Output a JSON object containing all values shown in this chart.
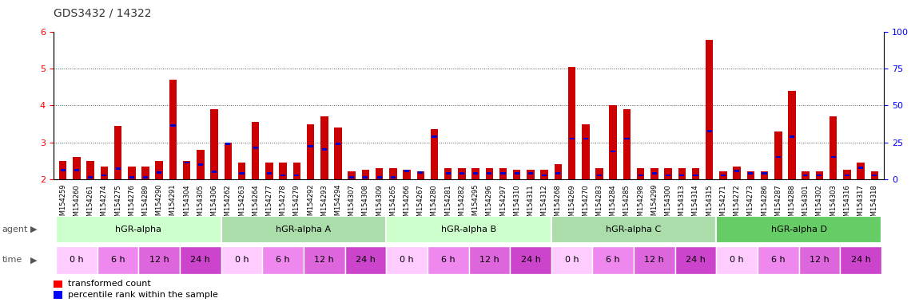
{
  "title": "GDS3432 / 14322",
  "samples": [
    "GSM154259",
    "GSM154260",
    "GSM154261",
    "GSM154274",
    "GSM154275",
    "GSM154276",
    "GSM154289",
    "GSM154290",
    "GSM154291",
    "GSM154304",
    "GSM154305",
    "GSM154306",
    "GSM154262",
    "GSM154263",
    "GSM154264",
    "GSM154277",
    "GSM154278",
    "GSM154279",
    "GSM154292",
    "GSM154293",
    "GSM154294",
    "GSM154307",
    "GSM154308",
    "GSM154309",
    "GSM154265",
    "GSM154266",
    "GSM154267",
    "GSM154280",
    "GSM154281",
    "GSM154282",
    "GSM154295",
    "GSM154296",
    "GSM154297",
    "GSM154310",
    "GSM154311",
    "GSM154312",
    "GSM154268",
    "GSM154269",
    "GSM154270",
    "GSM154283",
    "GSM154284",
    "GSM154285",
    "GSM154298",
    "GSM154299",
    "GSM154300",
    "GSM154313",
    "GSM154314",
    "GSM154315",
    "GSM154271",
    "GSM154272",
    "GSM154273",
    "GSM154286",
    "GSM154287",
    "GSM154288",
    "GSM154301",
    "GSM154302",
    "GSM154303",
    "GSM154316",
    "GSM154317",
    "GSM154318"
  ],
  "red_values": [
    2.5,
    2.6,
    2.5,
    2.35,
    3.45,
    2.35,
    2.35,
    2.5,
    4.7,
    2.5,
    2.8,
    3.9,
    3.0,
    2.45,
    3.55,
    2.45,
    2.45,
    2.45,
    3.5,
    3.7,
    3.4,
    2.2,
    2.25,
    2.3,
    2.3,
    2.25,
    2.2,
    3.35,
    2.3,
    2.3,
    2.3,
    2.3,
    2.3,
    2.25,
    2.25,
    2.25,
    2.4,
    5.05,
    3.5,
    2.3,
    4.0,
    3.9,
    2.3,
    2.3,
    2.3,
    2.3,
    2.3,
    5.8,
    2.2,
    2.35,
    2.2,
    2.2,
    3.3,
    4.4,
    2.2,
    2.2,
    3.7,
    2.25,
    2.45,
    2.2
  ],
  "blue_values": [
    2.25,
    2.25,
    2.05,
    2.1,
    2.28,
    2.05,
    2.05,
    2.18,
    3.45,
    2.45,
    2.4,
    2.2,
    2.95,
    2.15,
    2.85,
    2.15,
    2.1,
    2.1,
    2.9,
    2.8,
    2.95,
    2.05,
    2.05,
    2.05,
    2.05,
    2.22,
    2.18,
    3.15,
    2.15,
    2.15,
    2.15,
    2.15,
    2.15,
    2.15,
    2.15,
    2.1,
    2.15,
    3.1,
    3.1,
    2.1,
    2.75,
    3.1,
    2.1,
    2.15,
    2.1,
    2.1,
    2.1,
    3.3,
    2.1,
    2.22,
    2.15,
    2.15,
    2.6,
    3.15,
    2.1,
    2.1,
    2.6,
    2.1,
    2.3,
    2.1
  ],
  "agents": [
    {
      "label": "hGR-alpha",
      "start": 0,
      "end": 12
    },
    {
      "label": "hGR-alpha A",
      "start": 12,
      "end": 24
    },
    {
      "label": "hGR-alpha B",
      "start": 24,
      "end": 36
    },
    {
      "label": "hGR-alpha C",
      "start": 36,
      "end": 48
    },
    {
      "label": "hGR-alpha D",
      "start": 48,
      "end": 60
    }
  ],
  "agent_colors": [
    "#ccffcc",
    "#aaddaa",
    "#ccffcc",
    "#aaddaa",
    "#66cc66"
  ],
  "time_labels": [
    "0 h",
    "6 h",
    "12 h",
    "24 h"
  ],
  "time_colors_cycle": [
    "#ffccff",
    "#ee88ee",
    "#dd66dd",
    "#cc44cc"
  ],
  "ylim_left": [
    2.0,
    6.0
  ],
  "yticks_left": [
    2,
    3,
    4,
    5,
    6
  ],
  "ylim_right": [
    0,
    100
  ],
  "yticks_right": [
    0,
    25,
    50,
    75,
    100
  ],
  "bar_color_red": "#cc0000",
  "bar_color_blue": "#0000cc",
  "grid_color": "#555555",
  "title_fontsize": 10,
  "tick_fontsize": 6,
  "bar_width": 0.55
}
